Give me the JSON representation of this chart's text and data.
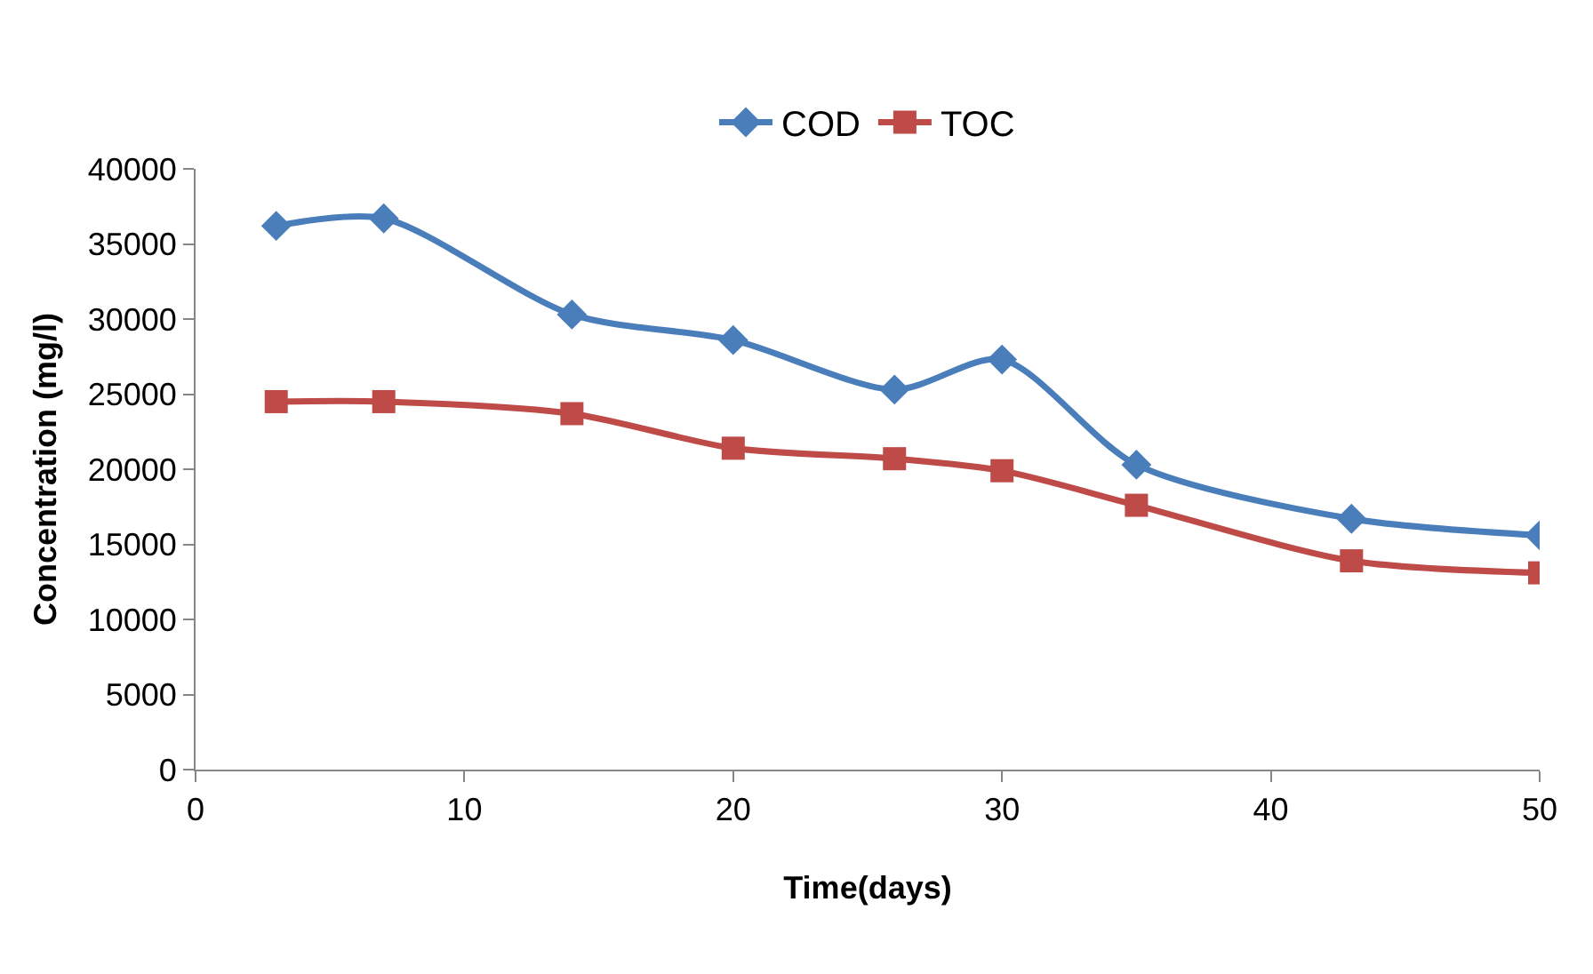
{
  "chart_data": {
    "type": "line",
    "xlabel": "Time(days)",
    "ylabel": "Concentration (mg/l)",
    "x": [
      3,
      7,
      14,
      20,
      26,
      30,
      35,
      43,
      50
    ],
    "series": [
      {
        "name": "COD",
        "color": "#4a7ebb",
        "marker": "diamond",
        "values": [
          36200,
          36700,
          30300,
          28600,
          25300,
          27300,
          20300,
          16700,
          15600
        ]
      },
      {
        "name": "TOC",
        "color": "#be4b48",
        "marker": "square",
        "values": [
          24500,
          24500,
          23700,
          21400,
          20700,
          19900,
          17600,
          13900,
          13100
        ]
      }
    ],
    "xlim": [
      0,
      50
    ],
    "xticks": [
      0,
      10,
      20,
      30,
      40,
      50
    ],
    "ylim": [
      0,
      40000
    ],
    "yticks": [
      0,
      5000,
      10000,
      15000,
      20000,
      25000,
      30000,
      35000,
      40000
    ],
    "grid": false,
    "legend": "top",
    "line_style": "solid"
  }
}
